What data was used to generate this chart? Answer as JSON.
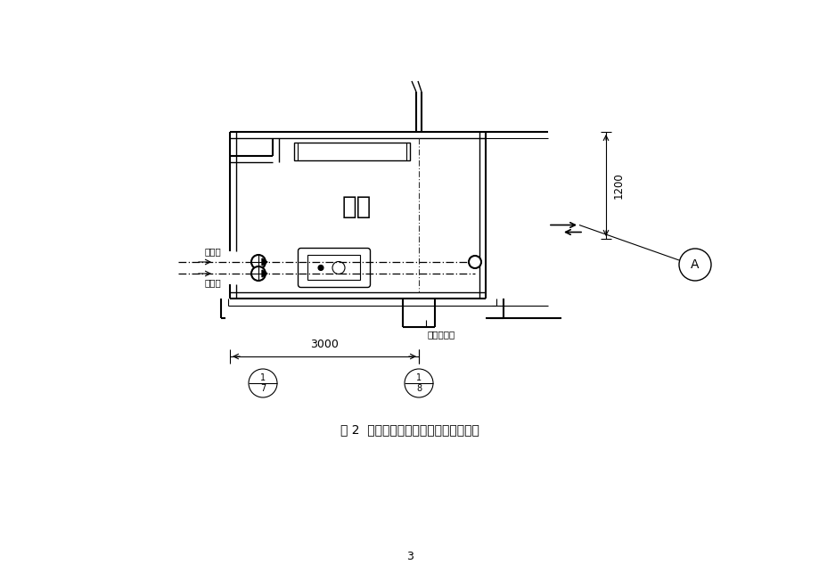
{
  "title": "图 2  厨房给水、热水、排水工程平面图",
  "page_number": "3",
  "background_color": "#ffffff",
  "line_color": "#000000",
  "room_label": "厨房",
  "hot_water_label": "热水管",
  "cold_water_label": "供水管",
  "drain_label": "厨房排水管",
  "dim_1200": "1200",
  "dim_3000": "3000",
  "axis_label_A": "A",
  "ref_top": "1",
  "ref_1_7_bot": "7",
  "ref_1_8_bot": "8"
}
